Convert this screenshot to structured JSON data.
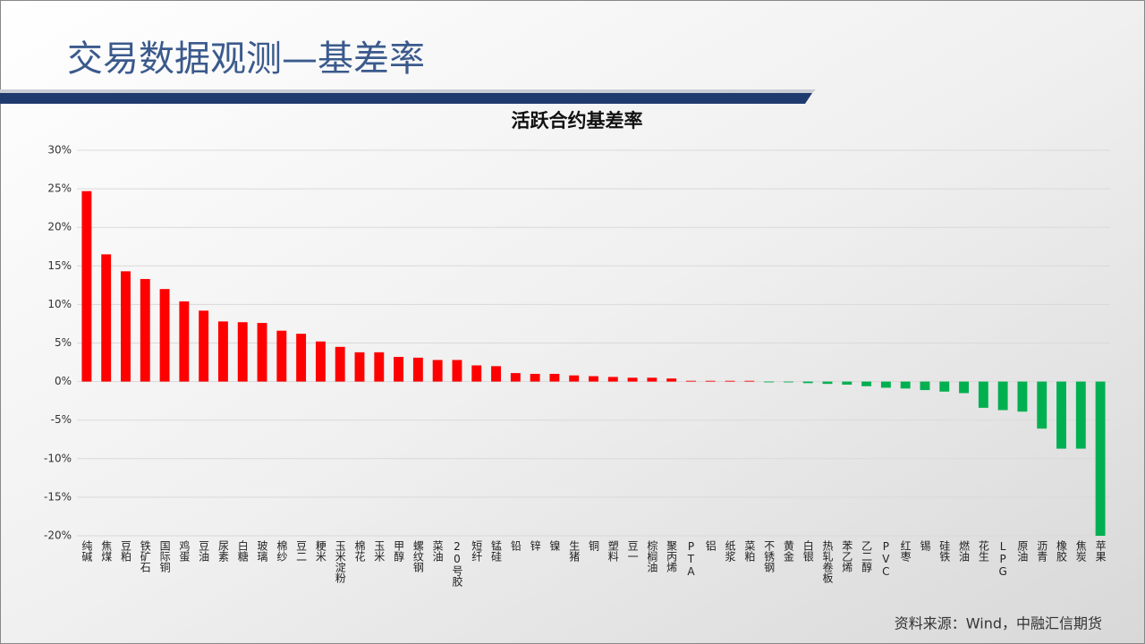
{
  "header": {
    "title": "交易数据观测—基差率"
  },
  "chart_data": {
    "type": "bar",
    "title": "活跃合约基差率",
    "categories": [
      "纯碱",
      "焦煤",
      "豆粕",
      "铁矿石",
      "国际铜",
      "鸡蛋",
      "豆油",
      "尿素",
      "白糖",
      "玻璃",
      "棉纱",
      "豆二",
      "粳米",
      "玉米淀粉",
      "棉花",
      "玉米",
      "甲醇",
      "螺纹钢",
      "菜油",
      "20号胶",
      "短纤",
      "锰硅",
      "铅",
      "锌",
      "镍",
      "生猪",
      "铜",
      "塑料",
      "豆一",
      "棕榈油",
      "聚丙烯",
      "PTA",
      "铝",
      "纸浆",
      "菜粕",
      "不锈钢",
      "黄金",
      "白银",
      "热轧卷板",
      "苯乙烯",
      "乙二醇",
      "PVC",
      "红枣",
      "锡",
      "硅铁",
      "燃油",
      "花生",
      "LPG",
      "原油",
      "沥青",
      "橡胶",
      "焦炭",
      "苹果"
    ],
    "values": [
      24.7,
      16.5,
      14.3,
      13.3,
      12.0,
      10.4,
      9.2,
      7.8,
      7.7,
      7.6,
      6.6,
      6.2,
      5.2,
      4.5,
      3.8,
      3.8,
      3.2,
      3.1,
      2.8,
      2.8,
      2.1,
      2.0,
      1.1,
      1.0,
      1.0,
      0.8,
      0.7,
      0.6,
      0.5,
      0.5,
      0.4,
      0.1,
      0.1,
      0.1,
      0.1,
      -0.1,
      -0.1,
      -0.2,
      -0.3,
      -0.4,
      -0.6,
      -0.8,
      -0.9,
      -1.1,
      -1.3,
      -1.5,
      -3.4,
      -3.7,
      -3.9,
      -6.1,
      -8.7,
      -8.7,
      -20.0
    ],
    "colors": {
      "positive": "#ff0000",
      "negative": "#00b050"
    },
    "ylim": [
      -20,
      30
    ],
    "yticks": [
      {
        "value": -20,
        "label": "-20%"
      },
      {
        "value": -15,
        "label": "-15%"
      },
      {
        "value": -10,
        "label": "-10%"
      },
      {
        "value": -5,
        "label": "-5%"
      },
      {
        "value": 0,
        "label": "0%"
      },
      {
        "value": 5,
        "label": "5%"
      },
      {
        "value": 10,
        "label": "10%"
      },
      {
        "value": 15,
        "label": "15%"
      },
      {
        "value": 20,
        "label": "20%"
      },
      {
        "value": 25,
        "label": "25%"
      },
      {
        "value": 30,
        "label": "30%"
      }
    ],
    "grid": true
  },
  "footer": {
    "source": "资料来源：Wind，中融汇信期货"
  }
}
